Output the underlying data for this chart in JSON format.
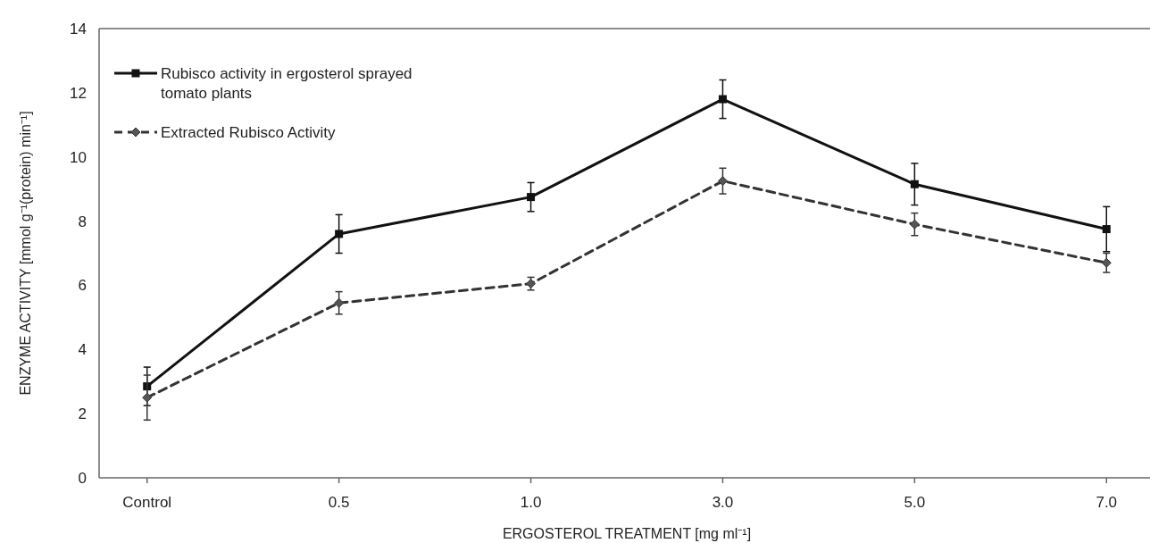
{
  "chart_data": {
    "type": "line",
    "xlabel": "ERGOSTEROL TREATMENT [mg ml⁻¹]",
    "ylabel": "ENZYME ACTIVITY [mmol g⁻¹(protein) min⁻¹]",
    "categories": [
      "Control",
      "0.5",
      "1.0",
      "3.0",
      "5.0",
      "7.0"
    ],
    "ylim": [
      0,
      14
    ],
    "yticks": [
      0,
      2,
      4,
      6,
      8,
      10,
      12,
      14
    ],
    "legend": "top left",
    "series": [
      {
        "name": "Rubisco activity in ergosterol sprayed tomato plants",
        "color": "#111111",
        "marker": "square",
        "line_style": "solid",
        "values": [
          2.85,
          7.6,
          8.75,
          11.8,
          9.15,
          7.75
        ],
        "errors": [
          0.6,
          0.6,
          0.45,
          0.6,
          0.65,
          0.7
        ]
      },
      {
        "name": "Extracted Rubisco Activity",
        "color": "#333333",
        "marker": "diamond",
        "line_style": "dashed",
        "values": [
          2.5,
          5.45,
          6.05,
          9.25,
          7.9,
          6.7
        ],
        "errors": [
          0.7,
          0.35,
          0.2,
          0.4,
          0.35,
          0.3
        ]
      }
    ]
  }
}
